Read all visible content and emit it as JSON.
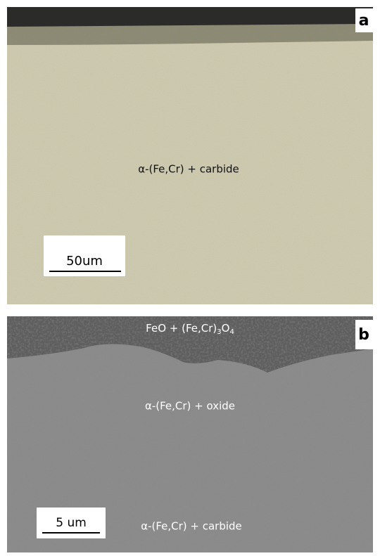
{
  "panels": [
    {
      "label": "a",
      "annotations": [
        {
          "text": "α-(Fe,Cr) + carbide"
        }
      ],
      "scale_bar": "50um"
    },
    {
      "label": "b",
      "annotations": [
        {
          "parts": [
            "FeO + (Fe,Cr)",
            "3",
            "O",
            "4"
          ]
        },
        {
          "text": "α-(Fe,Cr) + oxide"
        },
        {
          "text": "α-(Fe,Cr) + carbide"
        }
      ],
      "scale_bar": "5 um"
    }
  ]
}
